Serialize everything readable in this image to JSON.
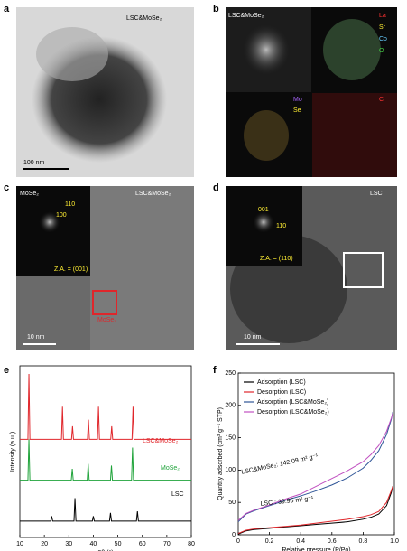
{
  "panels": {
    "a": {
      "letter": "a",
      "label": "LSC&MoSe₂",
      "scale": "100 nm"
    },
    "b": {
      "letter": "b",
      "label": "LSC&MoSe₂",
      "elements": [
        "La",
        "Sr",
        "Co",
        "O",
        "Mo",
        "Se",
        "C"
      ]
    },
    "c": {
      "letter": "c",
      "inset_label": "MoSe₂",
      "label": "LSC&MoSe₂",
      "fft": [
        "110",
        "100"
      ],
      "zone_axis": "Z.A. = (001)",
      "scale": "10 nm",
      "box_label": "MoSe₂"
    },
    "d": {
      "letter": "d",
      "label": "LSC",
      "fft": [
        "001",
        "110"
      ],
      "zone_axis": "Z.A. = (110)",
      "scale": "10 nm"
    }
  },
  "chart_data": [
    {
      "type": "line",
      "panel": "e",
      "xlabel": "2θ (°)",
      "ylabel": "Intensity (a.u.)",
      "xlim": [
        10,
        80
      ],
      "xticks": [
        10,
        20,
        30,
        40,
        50,
        60,
        70,
        80
      ],
      "ylim": [
        0,
        105
      ],
      "series": [
        {
          "name": "LSC&MoSe₂",
          "color": "#e0262b",
          "x": [
            10,
            13.3,
            13.7,
            14.1,
            27,
            27.4,
            27.8,
            31.1,
            31.5,
            31.9,
            37.6,
            38,
            38.4,
            41.7,
            42.1,
            42.5,
            47.1,
            47.5,
            47.9,
            55.8,
            56.2,
            56.6,
            80
          ],
          "values": [
            60,
            60,
            100,
            60,
            60,
            80,
            60,
            60,
            68,
            60,
            60,
            72,
            60,
            60,
            80,
            60,
            60,
            68,
            60,
            60,
            80,
            60,
            60
          ]
        },
        {
          "name": "MoSe₂",
          "color": "#1fa33a",
          "x": [
            10,
            13.3,
            13.7,
            14.1,
            31,
            31.4,
            31.8,
            37.5,
            37.9,
            38.3,
            47,
            47.4,
            47.8,
            55.6,
            56,
            56.4,
            80
          ],
          "values": [
            35,
            35,
            60,
            35,
            35,
            42,
            35,
            35,
            45,
            35,
            35,
            44,
            35,
            35,
            55,
            35,
            35
          ]
        },
        {
          "name": "LSC",
          "color": "#000000",
          "x": [
            10,
            22.6,
            23,
            23.4,
            32.1,
            32.5,
            32.9,
            39.6,
            40,
            40.4,
            46.6,
            47,
            47.4,
            57.6,
            58,
            58.4,
            80
          ],
          "values": [
            10,
            10,
            13,
            10,
            10,
            24,
            10,
            10,
            13,
            10,
            10,
            15,
            10,
            10,
            16,
            10,
            10
          ]
        }
      ]
    },
    {
      "type": "line",
      "panel": "f",
      "xlabel": "Relative pressure (P/Po)",
      "ylabel": "Quantity adsorbed (cm³ g⁻¹ STP)",
      "xlim": [
        0,
        1
      ],
      "xticks": [
        0,
        {
          "value": 0.2,
          "label": "0.2"
        },
        {
          "value": 0.4,
          "label": "0.4"
        },
        {
          "value": 0.6,
          "label": "0.6"
        },
        {
          "value": 0.8,
          "label": "0.8"
        },
        {
          "value": 1,
          "label": "1.0"
        }
      ],
      "ylim": [
        0,
        250
      ],
      "yticks": [
        0,
        50,
        100,
        150,
        200,
        250
      ],
      "x": [
        0,
        0.05,
        0.1,
        0.2,
        0.3,
        0.4,
        0.5,
        0.6,
        0.7,
        0.8,
        0.85,
        0.9,
        0.95,
        0.98,
        0.99
      ],
      "series": [
        {
          "name": "Adsorption (LSC)",
          "color": "#000000",
          "values": [
            1,
            6,
            8,
            10,
            12,
            14,
            16,
            18,
            20,
            24,
            27,
            32,
            45,
            65,
            75
          ]
        },
        {
          "name": "Desorption (LSC)",
          "color": "#e0262b",
          "values": [
            2,
            7,
            9,
            11,
            13,
            15,
            18,
            21,
            24,
            28,
            31,
            36,
            50,
            68,
            75
          ]
        },
        {
          "name": "Adsorption (LSC&MoSe₂)",
          "color": "#2f5597",
          "values": [
            20,
            32,
            37,
            45,
            53,
            60,
            68,
            77,
            88,
            103,
            115,
            130,
            155,
            178,
            190
          ]
        },
        {
          "name": "Desorption (LSC&MoSe₂)",
          "color": "#c04fc0",
          "values": [
            22,
            33,
            38,
            46,
            55,
            63,
            75,
            87,
            99,
            113,
            124,
            138,
            160,
            180,
            188
          ]
        }
      ],
      "annotations": [
        "LSC&MoSe₂: 142.09 m² g⁻¹",
        "LSC : 39.95 m² g⁻¹"
      ]
    }
  ]
}
